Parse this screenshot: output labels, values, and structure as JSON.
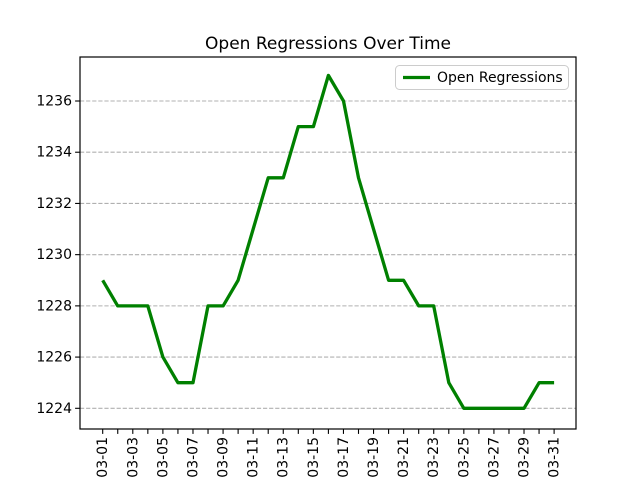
{
  "chart_data": {
    "type": "line",
    "title": "Open Regressions Over Time",
    "xlabel": "",
    "ylabel": "",
    "x": [
      "03-01",
      "03-02",
      "03-03",
      "03-04",
      "03-05",
      "03-06",
      "03-07",
      "03-08",
      "03-09",
      "03-10",
      "03-11",
      "03-12",
      "03-13",
      "03-14",
      "03-15",
      "03-16",
      "03-17",
      "03-18",
      "03-19",
      "03-20",
      "03-21",
      "03-22",
      "03-23",
      "03-24",
      "03-25",
      "03-26",
      "03-27",
      "03-28",
      "03-29",
      "03-30",
      "03-31"
    ],
    "series": [
      {
        "name": "Open Regressions",
        "color": "#008000",
        "values": [
          1229,
          1228,
          1228,
          1228,
          1226,
          1225,
          1225,
          1228,
          1228,
          1229,
          1231,
          1233,
          1233,
          1235,
          1235,
          1237,
          1236,
          1233,
          1231,
          1229,
          1229,
          1228,
          1228,
          1225,
          1224,
          1224,
          1224,
          1224,
          1224,
          1225,
          1225
        ]
      }
    ],
    "xtick_label_every": 2,
    "xtick_rotation_deg": 90,
    "ytick_values": [
      1224,
      1226,
      1228,
      1230,
      1232,
      1234,
      1236
    ],
    "ylim": [
      1223.2,
      1237.7
    ],
    "grid": "horizontal-dashed",
    "grid_color": "#b0b0b0",
    "axes_color": "#000000",
    "legend_position": "upper-right"
  }
}
